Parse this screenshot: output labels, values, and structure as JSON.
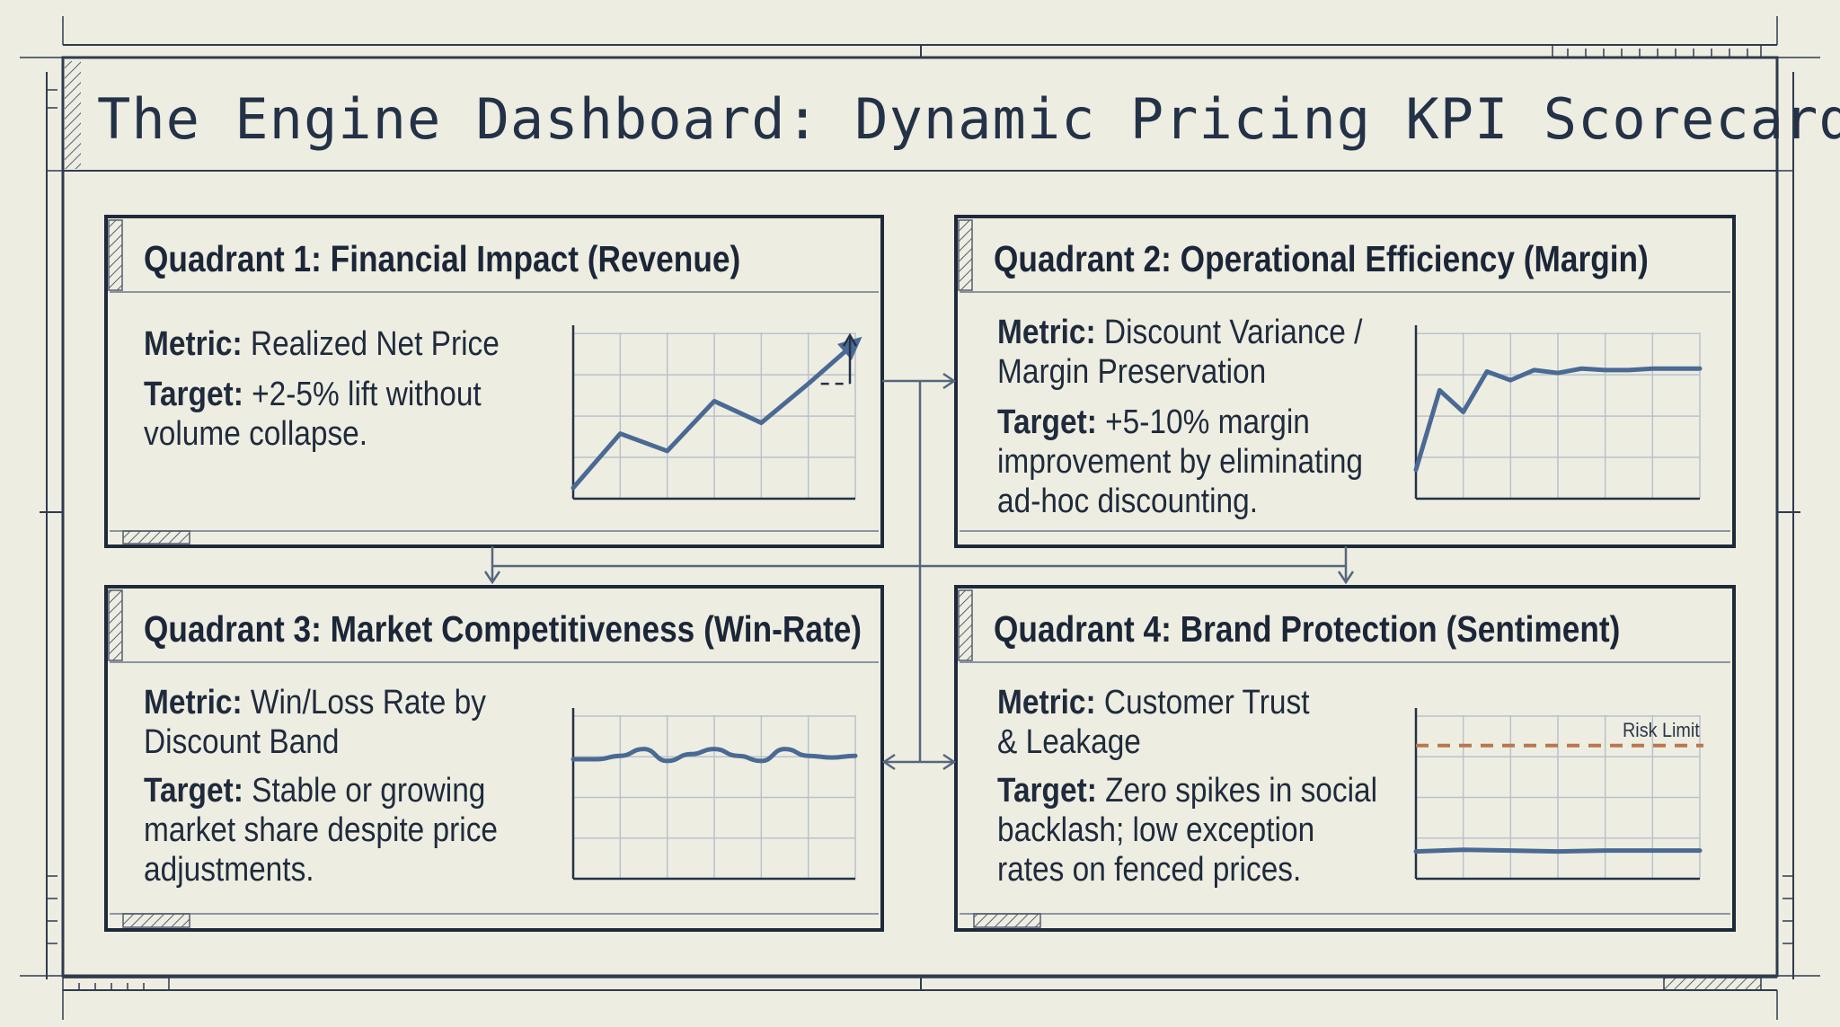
{
  "title": "The Engine Dashboard: Dynamic Pricing KPI Scorecard",
  "colors": {
    "background": "#eeede2",
    "ink": "#233247",
    "series": "#4a6a94",
    "risk_limit": "#b9774f",
    "grid": "#b9c2cc"
  },
  "quadrants": [
    {
      "heading": "Quadrant 1: Financial Impact (Revenue)",
      "metric_label": "Metric:",
      "metric_lines": [
        "Realized Net Price"
      ],
      "target_label": "Target:",
      "target_lines": [
        "+2-5% lift without",
        "volume collapse."
      ]
    },
    {
      "heading": "Quadrant 2: Operational Efficiency (Margin)",
      "metric_label": "Metric:",
      "metric_lines": [
        "Discount Variance /",
        "Margin Preservation"
      ],
      "target_label": "Target:",
      "target_lines": [
        "+5-10% margin",
        "improvement by eliminating",
        "ad-hoc discounting."
      ]
    },
    {
      "heading": "Quadrant 3: Market Competitiveness (Win-Rate)",
      "metric_label": "Metric:",
      "metric_lines": [
        "Win/Loss Rate by",
        "Discount Band"
      ],
      "target_label": "Target:",
      "target_lines": [
        "Stable or growing",
        "market share despite price",
        "adjustments."
      ]
    },
    {
      "heading": "Quadrant 4: Brand Protection (Sentiment)",
      "metric_label": "Metric:",
      "metric_lines": [
        "Customer Trust",
        "& Leakage"
      ],
      "target_label": "Target:",
      "target_lines": [
        "Zero spikes in social",
        "backlash; low exception",
        "rates on fenced prices."
      ],
      "risk_label": "Risk Limit"
    }
  ],
  "chart_data": [
    {
      "type": "line",
      "x": [
        0,
        1,
        2,
        3,
        4,
        5,
        6
      ],
      "series": [
        {
          "values": [
            5,
            30,
            22,
            45,
            35,
            53,
            72
          ]
        }
      ],
      "ylim": [
        0,
        80
      ],
      "grid": true,
      "annotation": "upward arrow from a dashed baseline at the last step"
    },
    {
      "type": "line",
      "x": [
        0,
        0.5,
        1,
        1.5,
        2,
        2.5,
        3,
        3.5,
        4,
        4.5,
        5,
        5.5,
        6
      ],
      "series": [
        {
          "values": [
            20,
            75,
            60,
            88,
            82,
            89,
            87,
            90,
            89,
            89,
            90,
            90,
            90
          ]
        }
      ],
      "ylim": [
        0,
        120
      ],
      "grid": true
    },
    {
      "type": "line",
      "x": [
        0,
        0.5,
        1,
        1.5,
        2,
        2.5,
        3,
        3.5,
        4,
        4.5,
        5,
        5.5,
        6
      ],
      "series": [
        {
          "values": [
            70,
            70,
            72,
            76,
            69,
            73,
            76,
            72,
            69,
            76,
            72,
            71,
            72
          ]
        }
      ],
      "ylim": [
        0,
        100
      ],
      "grid": true
    },
    {
      "type": "line",
      "x": [
        0,
        1,
        2,
        3,
        4,
        5,
        6
      ],
      "series": [
        {
          "values": [
            16,
            17,
            16.5,
            16,
            16.5,
            16.5,
            16.5
          ]
        }
      ],
      "ylim": [
        0,
        100
      ],
      "grid": true,
      "reference_lines": [
        {
          "label": "Risk Limit",
          "value": 78,
          "style": "dashed"
        }
      ]
    }
  ]
}
